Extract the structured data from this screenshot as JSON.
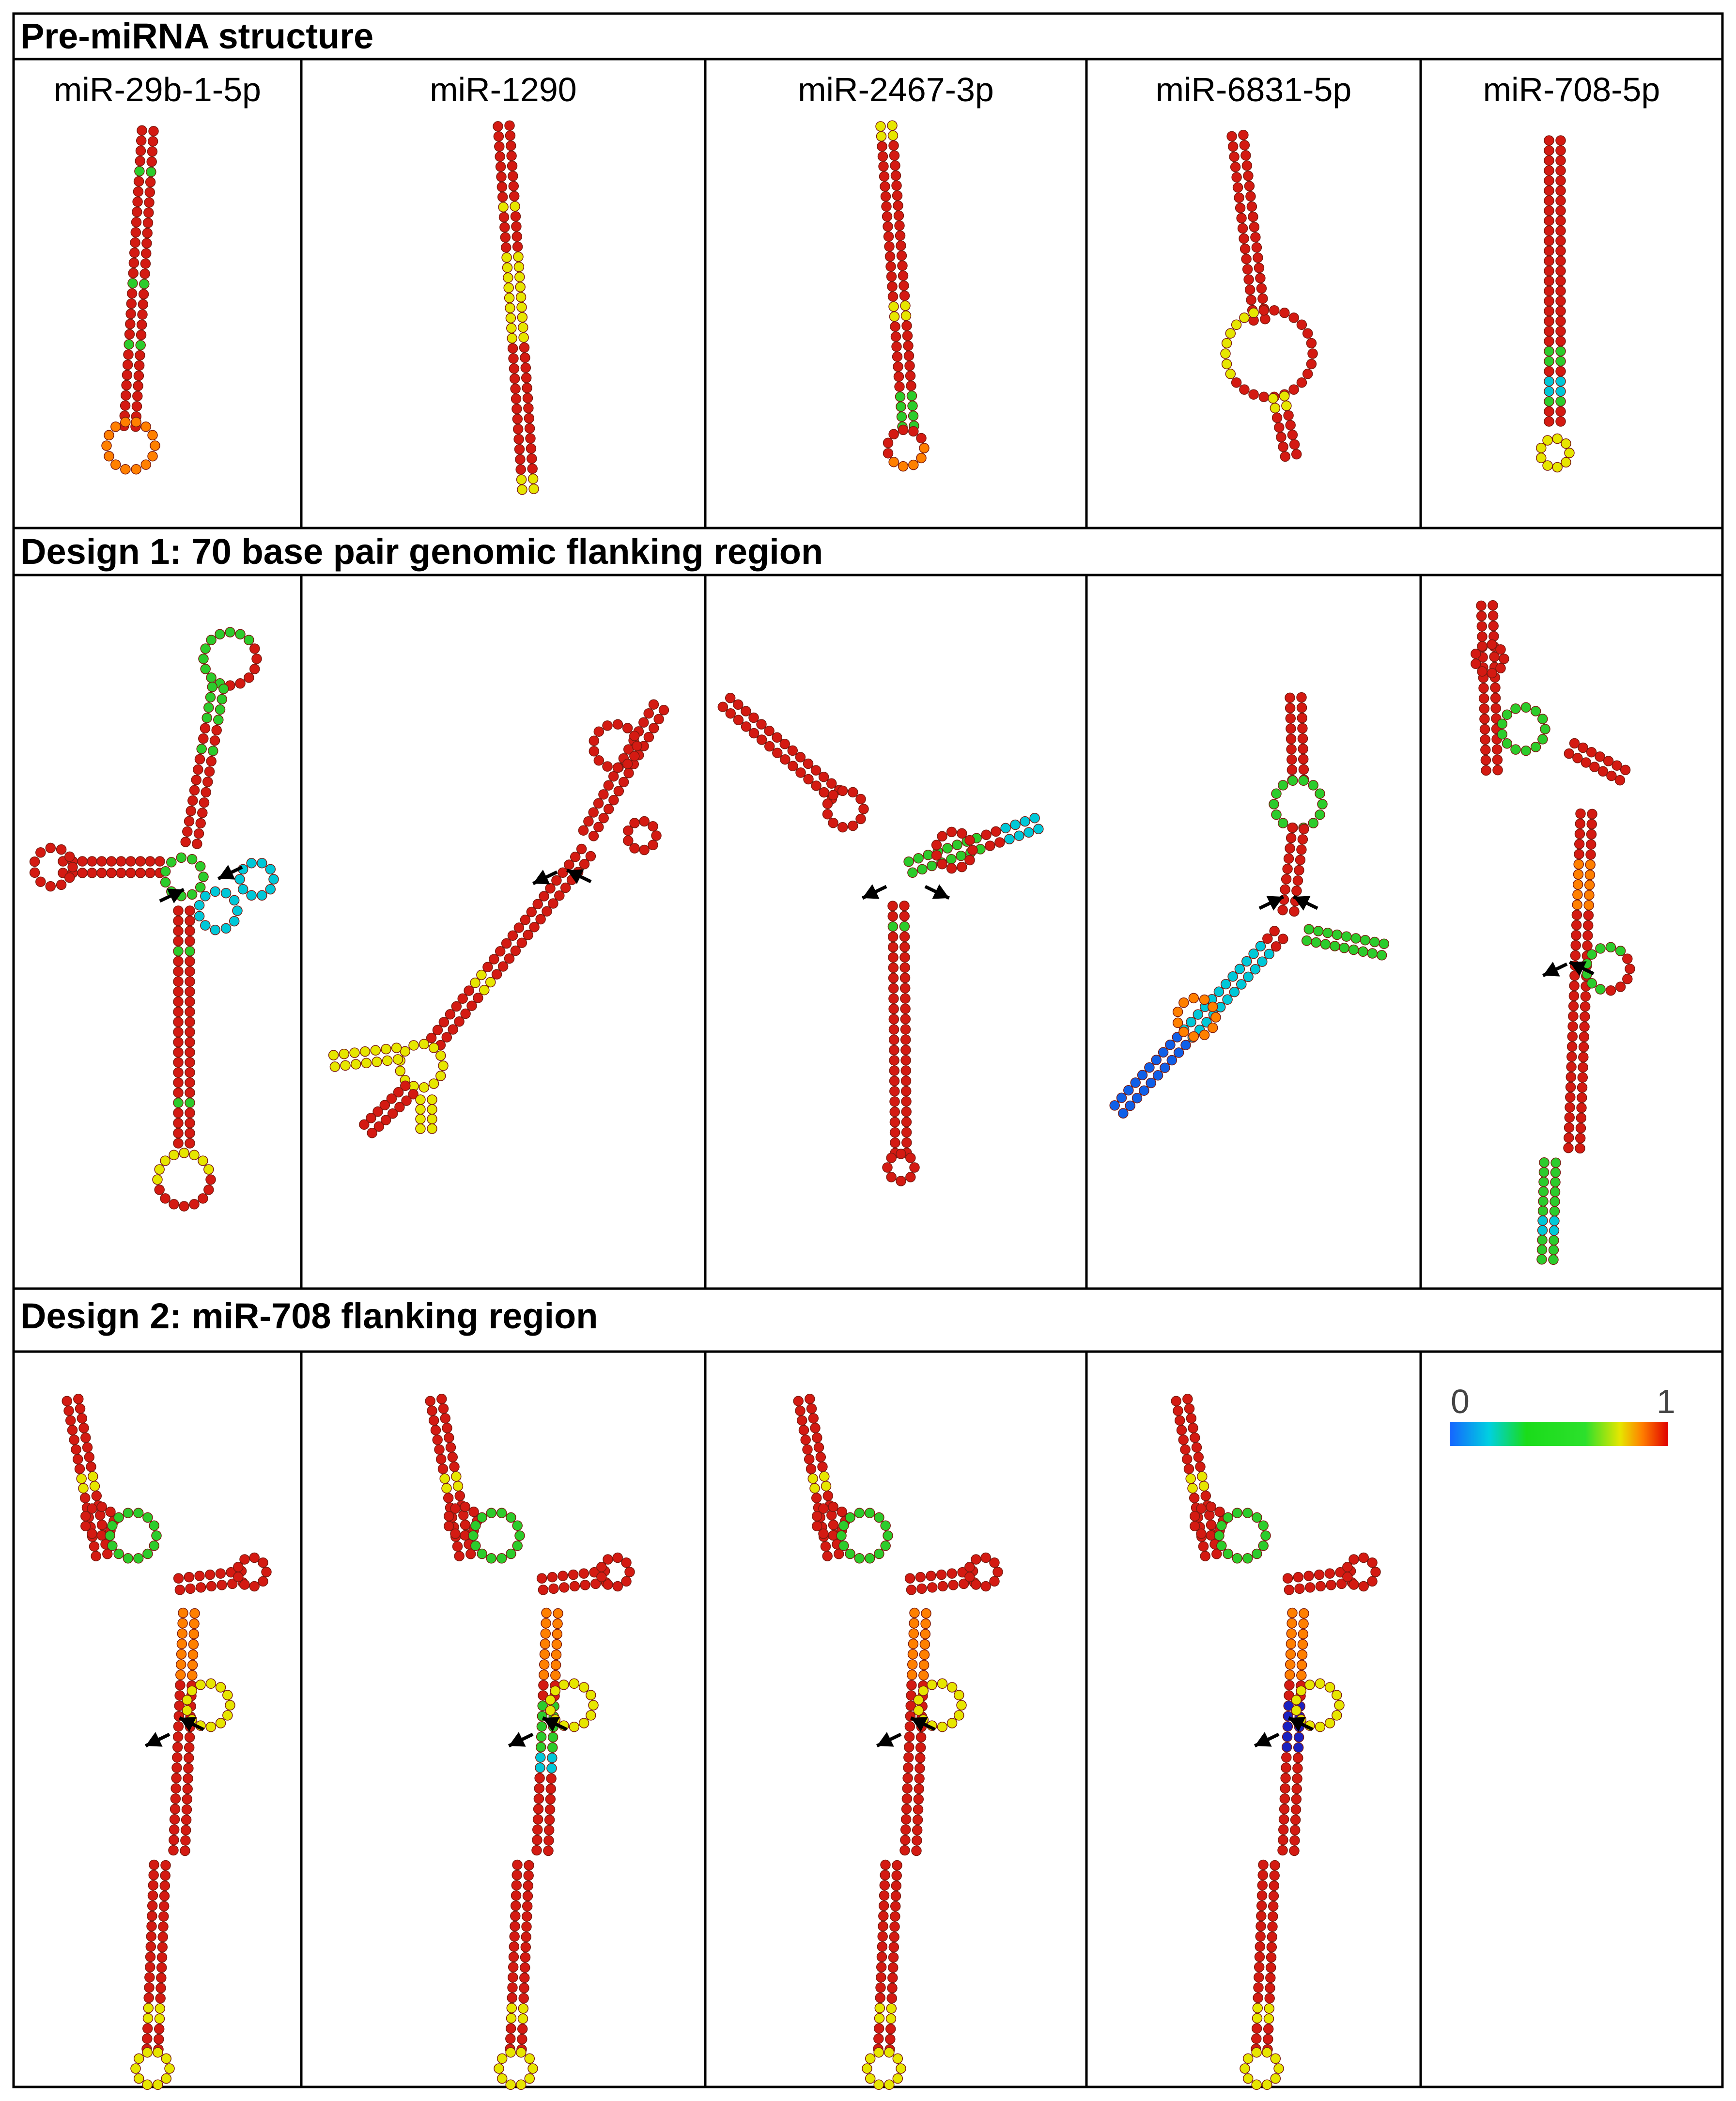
{
  "sections": {
    "premirna": "Pre-miRNA structure",
    "design1": "Design 1: 70 base pair genomic flanking region",
    "design2": "Design 2: miR-708 flanking region"
  },
  "columns": [
    "miR-29b-1-5p",
    "miR-1290",
    "miR-2467-3p",
    "miR-6831-5p",
    "miR-708-5p"
  ],
  "colorbar": {
    "min_label": "0",
    "max_label": "1"
  },
  "colors": {
    "stops": [
      "#1565ff",
      "#00d0e0",
      "#1adc1a",
      "#2ce02c",
      "#e6e600",
      "#ff8000",
      "#e00000"
    ],
    "base_pair_prob_high": "#d41a12",
    "base_pair_prob_mid": "#2ccc2c",
    "base_pair_prob_low": "#1060e8",
    "arrow": "#000000",
    "grid": "#000000"
  },
  "arrows_per_panel": 2
}
